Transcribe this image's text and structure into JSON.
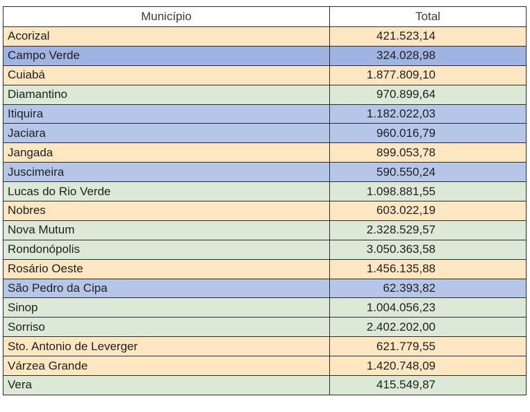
{
  "headers": {
    "municipio": "Município",
    "total": "Total"
  },
  "colors": {
    "orange": "#fde7c2",
    "blue": "#b6c6e9",
    "blue-dark": "#9fb4e2",
    "green": "#dbe9d6"
  },
  "rows": [
    {
      "municipio": "Acorizal",
      "total": "421.523,14",
      "color": "orange"
    },
    {
      "municipio": "Campo Verde",
      "total": "324.028,98",
      "color": "blue-dark"
    },
    {
      "municipio": "Cuiabá",
      "total": "1.877.809,10",
      "color": "orange"
    },
    {
      "municipio": "Diamantino",
      "total": "970.899,64",
      "color": "green"
    },
    {
      "municipio": "Itiquira",
      "total": "1.182.022,03",
      "color": "blue"
    },
    {
      "municipio": "Jaciara",
      "total": "960.016,79",
      "color": "blue"
    },
    {
      "municipio": "Jangada",
      "total": "899.053,78",
      "color": "orange"
    },
    {
      "municipio": "Juscimeira",
      "total": "590.550,24",
      "color": "blue"
    },
    {
      "municipio": "Lucas do Rio Verde",
      "total": "1.098.881,55",
      "color": "green"
    },
    {
      "municipio": "Nobres",
      "total": "603.022,19",
      "color": "orange"
    },
    {
      "municipio": "Nova Mutum",
      "total": "2.328.529,57",
      "color": "green"
    },
    {
      "municipio": "Rondonópolis",
      "total": "3.050.363,58",
      "color": "green"
    },
    {
      "municipio": "Rosário Oeste",
      "total": "1.456.135,88",
      "color": "orange"
    },
    {
      "municipio": "São Pedro da Cipa",
      "total": "62.393,82",
      "color": "blue"
    },
    {
      "municipio": "Sinop",
      "total": "1.004.056,23",
      "color": "green"
    },
    {
      "municipio": "Sorriso",
      "total": "2.402.202,00",
      "color": "green"
    },
    {
      "municipio": "Sto. Antonio de Leverger",
      "total": "621.779,55",
      "color": "orange"
    },
    {
      "municipio": "Várzea Grande",
      "total": "1.420.748,09",
      "color": "orange"
    },
    {
      "municipio": "Vera",
      "total": "415.549,87",
      "color": "green"
    }
  ]
}
